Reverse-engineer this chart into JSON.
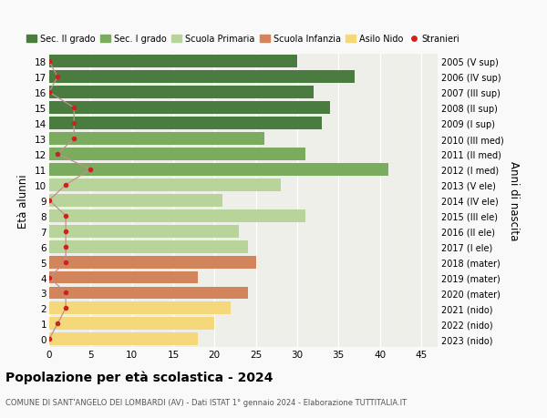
{
  "ages": [
    18,
    17,
    16,
    15,
    14,
    13,
    12,
    11,
    10,
    9,
    8,
    7,
    6,
    5,
    4,
    3,
    2,
    1,
    0
  ],
  "bar_values": [
    30,
    37,
    32,
    34,
    33,
    26,
    31,
    41,
    28,
    21,
    31,
    23,
    24,
    25,
    18,
    24,
    22,
    20,
    18
  ],
  "bar_colors": [
    "#4a7c3f",
    "#4a7c3f",
    "#4a7c3f",
    "#4a7c3f",
    "#4a7c3f",
    "#7aab5e",
    "#7aab5e",
    "#7aab5e",
    "#b8d49a",
    "#b8d49a",
    "#b8d49a",
    "#b8d49a",
    "#b8d49a",
    "#d2845a",
    "#d2845a",
    "#d2845a",
    "#f5d87a",
    "#f5d87a",
    "#f5d87a"
  ],
  "stranieri_values": [
    0,
    1,
    0,
    3,
    3,
    3,
    1,
    5,
    2,
    0,
    2,
    2,
    2,
    2,
    0,
    2,
    2,
    1,
    0
  ],
  "right_labels": [
    "2005 (V sup)",
    "2006 (IV sup)",
    "2007 (III sup)",
    "2008 (II sup)",
    "2009 (I sup)",
    "2010 (III med)",
    "2011 (II med)",
    "2012 (I med)",
    "2013 (V ele)",
    "2014 (IV ele)",
    "2015 (III ele)",
    "2016 (II ele)",
    "2017 (I ele)",
    "2018 (mater)",
    "2019 (mater)",
    "2020 (mater)",
    "2021 (nido)",
    "2022 (nido)",
    "2023 (nido)"
  ],
  "legend_labels": [
    "Sec. II grado",
    "Sec. I grado",
    "Scuola Primaria",
    "Scuola Infanzia",
    "Asilo Nido",
    "Stranieri"
  ],
  "legend_colors": [
    "#4a7c3f",
    "#7aab5e",
    "#b8d49a",
    "#d2845a",
    "#f5d87a",
    "#cc2222"
  ],
  "title": "Popolazione per età scolastica - 2024",
  "subtitle": "COMUNE DI SANT'ANGELO DEI LOMBARDI (AV) - Dati ISTAT 1° gennaio 2024 - Elaborazione TUTTITALIA.IT",
  "ylabel": "Età alunni",
  "right_ylabel": "Anni di nascita",
  "xlim": [
    0,
    47
  ],
  "background_color": "#f9f9f9",
  "bar_background": "#efefea",
  "stranieri_color": "#cc2222",
  "stranieri_line_color": "#c09090"
}
